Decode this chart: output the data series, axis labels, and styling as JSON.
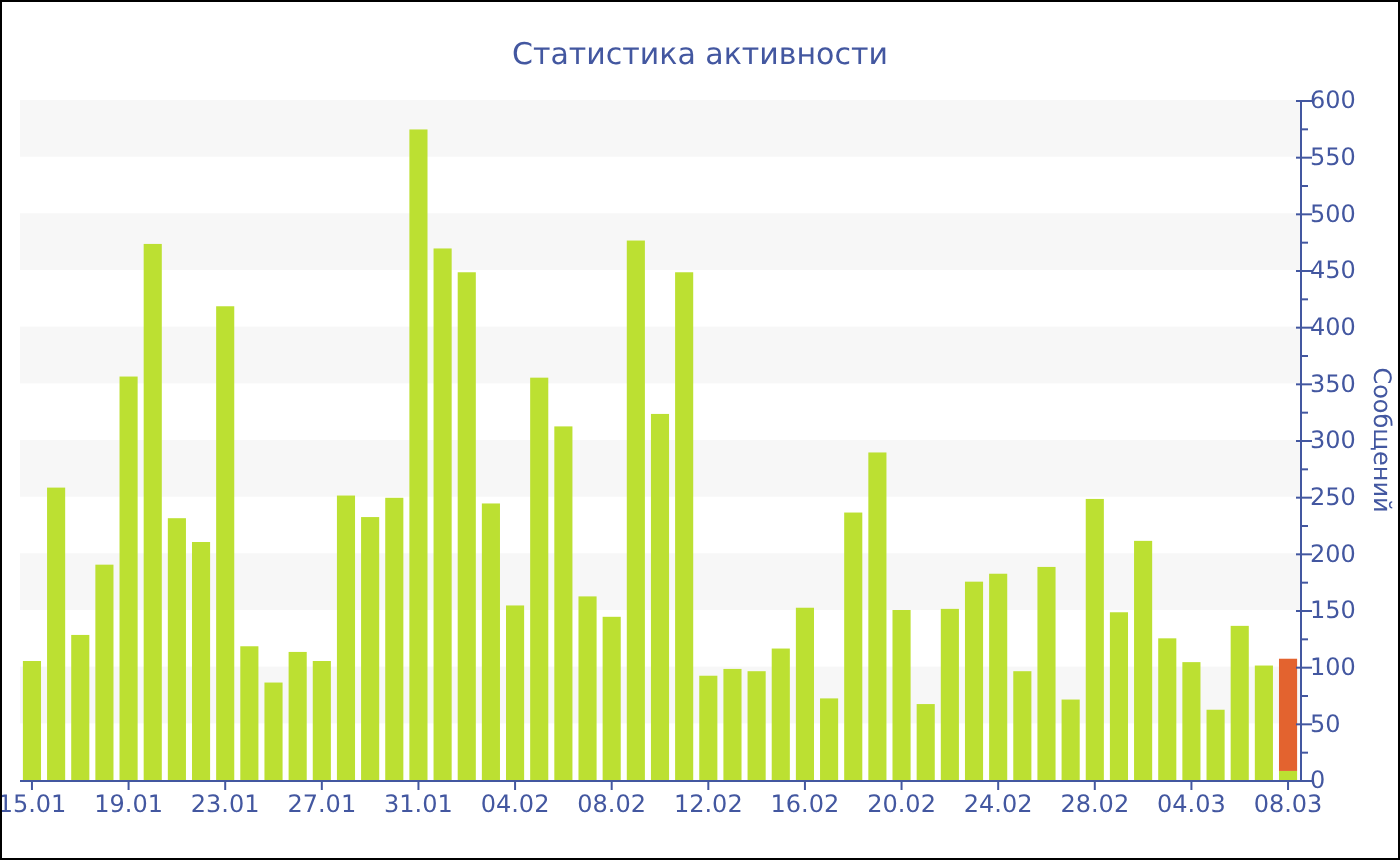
{
  "chart_data": {
    "type": "bar",
    "title": "Статистика активности",
    "ylabel": "Сообщений",
    "categories": [
      "15.01",
      null,
      null,
      null,
      "19.01",
      null,
      null,
      null,
      "23.01",
      null,
      null,
      null,
      "27.01",
      null,
      null,
      null,
      "31.01",
      null,
      null,
      null,
      "04.02",
      null,
      null,
      null,
      "08.02",
      null,
      null,
      null,
      "12.02",
      null,
      null,
      null,
      "16.02",
      null,
      null,
      null,
      "20.02",
      null,
      null,
      null,
      "24.02",
      null,
      null,
      null,
      "28.02",
      null,
      null,
      null,
      "04.03",
      null,
      null,
      null,
      "08.03"
    ],
    "stacked": true,
    "series": [
      {
        "color": "#bce032",
        "values": [
          105,
          258,
          128,
          190,
          356,
          473,
          231,
          210,
          418,
          118,
          86,
          113,
          105,
          251,
          232,
          249,
          574,
          469,
          448,
          244,
          154,
          355,
          312,
          162,
          144,
          476,
          323,
          448,
          92,
          98,
          96,
          116,
          152,
          72,
          236,
          289,
          150,
          67,
          151,
          175,
          182,
          96,
          188,
          71,
          248,
          148,
          211,
          125,
          104,
          62,
          136,
          101,
          8
        ]
      },
      {
        "color": "#e3632f",
        "values": [
          null,
          null,
          null,
          null,
          null,
          null,
          null,
          null,
          null,
          null,
          null,
          null,
          null,
          null,
          null,
          null,
          null,
          null,
          null,
          null,
          null,
          null,
          null,
          null,
          null,
          null,
          null,
          null,
          null,
          null,
          null,
          null,
          null,
          null,
          null,
          null,
          null,
          null,
          null,
          null,
          null,
          null,
          null,
          null,
          null,
          null,
          null,
          null,
          null,
          null,
          null,
          null,
          99
        ]
      }
    ],
    "ylim": [
      0,
      600
    ],
    "yticks": [
      0,
      {
        "value": 25,
        "label": null
      },
      50,
      {
        "value": 75,
        "label": null
      },
      100,
      {
        "value": 125,
        "label": null
      },
      150,
      {
        "value": 175,
        "label": null
      },
      200,
      {
        "value": 225,
        "label": null
      },
      250,
      {
        "value": 275,
        "label": null
      },
      300,
      {
        "value": 325,
        "label": null
      },
      350,
      {
        "value": 375,
        "label": null
      },
      400,
      {
        "value": 425,
        "label": null
      },
      450,
      {
        "value": 475,
        "label": null
      },
      500,
      {
        "value": 525,
        "label": null
      },
      550,
      {
        "value": 575,
        "label": null
      },
      600
    ],
    "bands": [
      {
        "axis": "y",
        "from": 50,
        "to": 100,
        "color": "#f7f7f7"
      },
      {
        "axis": "y",
        "from": 150,
        "to": 200,
        "color": "#f7f7f7"
      },
      {
        "axis": "y",
        "from": 250,
        "to": 300,
        "color": "#f7f7f7"
      },
      {
        "axis": "y",
        "from": 350,
        "to": 400,
        "color": "#f7f7f7"
      },
      {
        "axis": "y",
        "from": 450,
        "to": 500,
        "color": "#f7f7f7"
      },
      {
        "axis": "y",
        "from": 550,
        "to": 600,
        "color": "#f7f7f7"
      }
    ]
  }
}
